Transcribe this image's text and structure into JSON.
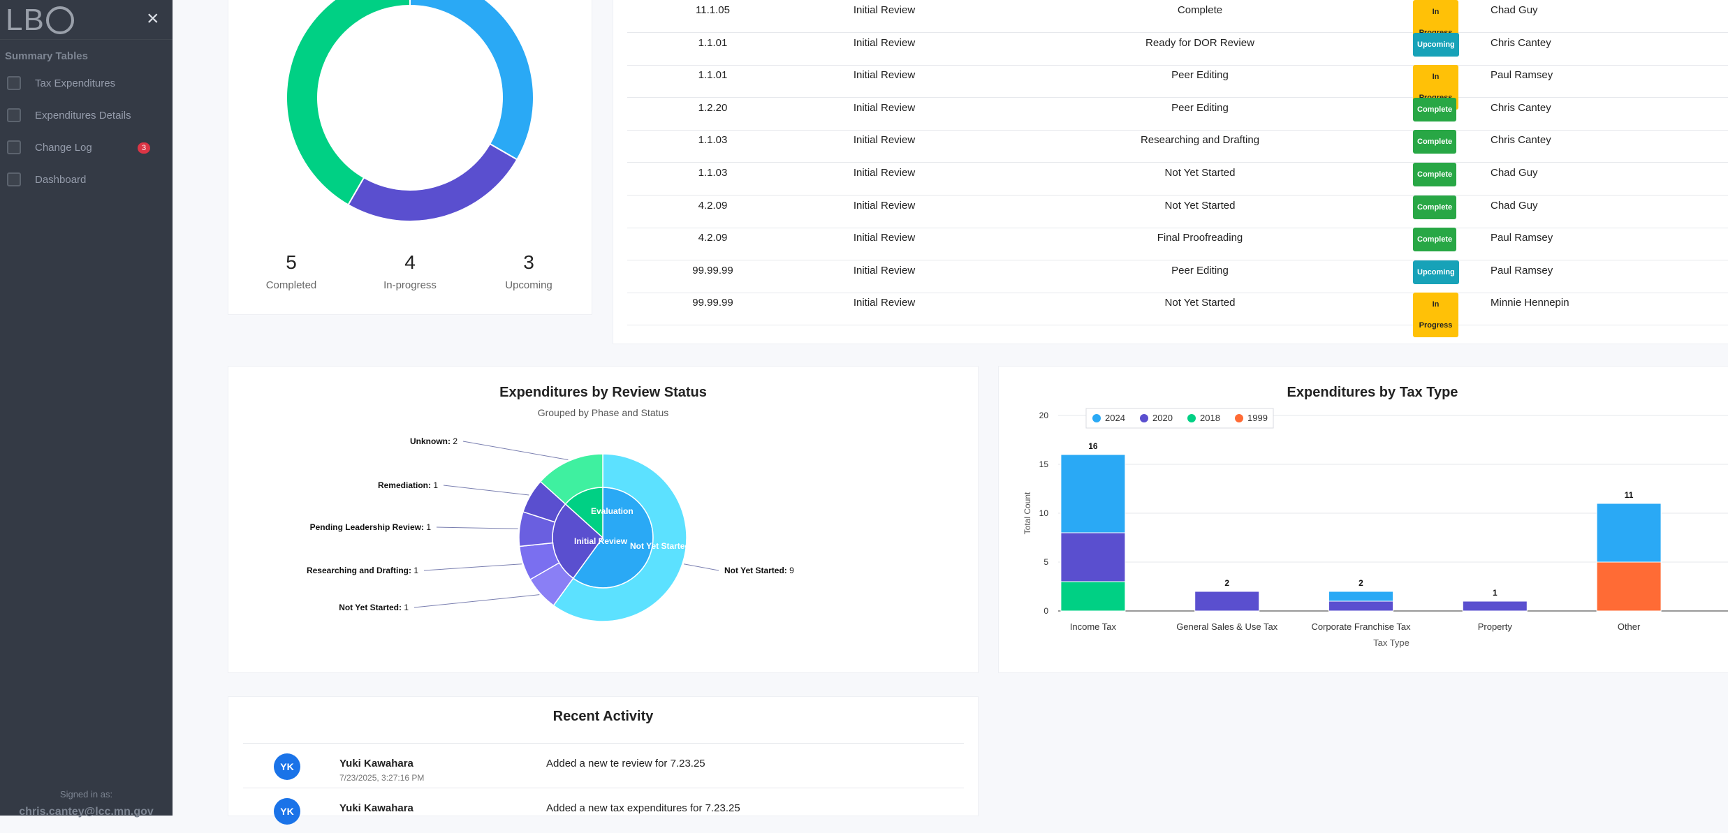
{
  "sidebar": {
    "logo": "LB",
    "close_label": "×",
    "section_title": "Summary Tables",
    "items": [
      {
        "label": "Tax Expenditures",
        "icon": "table-icon"
      },
      {
        "label": "Expenditures Details",
        "icon": "bar-chart-icon"
      },
      {
        "label": "Change Log",
        "icon": "log-icon",
        "badge": "3"
      },
      {
        "label": "Dashboard",
        "icon": "line-chart-icon"
      }
    ],
    "signed_in_label": "Signed in as:",
    "signed_in_email": "chris.cantey@lcc.mn.gov"
  },
  "summary": {
    "stats": [
      {
        "value": "5",
        "label": "Completed"
      },
      {
        "value": "4",
        "label": "In-progress"
      },
      {
        "value": "3",
        "label": "Upcoming"
      }
    ],
    "donut": [
      {
        "name": "Completed",
        "value": 5,
        "color": "#00d084"
      },
      {
        "name": "In-progress",
        "value": 4,
        "color": "#2aa9f5"
      },
      {
        "name": "Upcoming",
        "value": 3,
        "color": "#5a4fcf"
      }
    ]
  },
  "table": {
    "rows": [
      {
        "id": "11.1.05",
        "phase": "Initial Review",
        "step": "Complete",
        "status": "In Progress",
        "status_type": "prog",
        "assignee": "Chad Guy"
      },
      {
        "id": "1.1.01",
        "phase": "Initial Review",
        "step": "Ready for DOR Review",
        "status": "Upcoming",
        "status_type": "up",
        "assignee": "Chris Cantey"
      },
      {
        "id": "1.1.01",
        "phase": "Initial Review",
        "step": "Peer Editing",
        "status": "In Progress",
        "status_type": "prog",
        "assignee": "Paul Ramsey"
      },
      {
        "id": "1.2.20",
        "phase": "Initial Review",
        "step": "Peer Editing",
        "status": "Complete",
        "status_type": "comp",
        "assignee": "Chris Cantey"
      },
      {
        "id": "1.1.03",
        "phase": "Initial Review",
        "step": "Researching and Drafting",
        "status": "Complete",
        "status_type": "comp",
        "assignee": "Chris Cantey"
      },
      {
        "id": "1.1.03",
        "phase": "Initial Review",
        "step": "Not Yet Started",
        "status": "Complete",
        "status_type": "comp",
        "assignee": "Chad Guy"
      },
      {
        "id": "4.2.09",
        "phase": "Initial Review",
        "step": "Not Yet Started",
        "status": "Complete",
        "status_type": "comp",
        "assignee": "Chad Guy"
      },
      {
        "id": "4.2.09",
        "phase": "Initial Review",
        "step": "Final Proofreading",
        "status": "Complete",
        "status_type": "comp",
        "assignee": "Paul Ramsey"
      },
      {
        "id": "99.99.99",
        "phase": "Initial Review",
        "step": "Peer Editing",
        "status": "Upcoming",
        "status_type": "up",
        "assignee": "Paul Ramsey"
      },
      {
        "id": "99.99.99",
        "phase": "Initial Review",
        "step": "Not Yet Started",
        "status": "In Progress",
        "status_type": "prog",
        "assignee": "Minnie Hennepin"
      }
    ]
  },
  "chart_data": [
    {
      "type": "pie",
      "title": "Expenditures by Review Status",
      "subtitle": "Grouped by Phase and Status",
      "inner": [
        {
          "name": "Evaluation",
          "value": 2,
          "color": "#00d084"
        },
        {
          "name": "Initial Review",
          "value": 4,
          "color": "#5a4fcf"
        },
        {
          "name": "Not Yet Started",
          "value": 9,
          "color": "#2aa9f5"
        }
      ],
      "outer": [
        {
          "name": "Unknown",
          "value": 2,
          "color": "#3ff0a0"
        },
        {
          "name": "Remediation",
          "value": 1,
          "color": "#5a4fcf"
        },
        {
          "name": "Pending Leadership Review",
          "value": 1,
          "color": "#6a5fe0"
        },
        {
          "name": "Researching and Drafting",
          "value": 1,
          "color": "#7a6ff0"
        },
        {
          "name": "Not Yet Started",
          "value": 1,
          "color": "#8a7ff5"
        },
        {
          "name": "Not Yet Started",
          "value": 9,
          "color": "#5ce1ff"
        }
      ]
    },
    {
      "type": "bar",
      "stacked": true,
      "title": "Expenditures by Tax Type",
      "xlabel": "Tax Type",
      "ylabel": "Total Count",
      "ylim": [
        0,
        20
      ],
      "yticks": [
        0,
        5,
        10,
        15,
        20
      ],
      "categories": [
        "Income Tax",
        "General Sales & Use Tax",
        "Corporate Franchise Tax",
        "Property",
        "Other"
      ],
      "series": [
        {
          "name": "2018",
          "color": "#00d084",
          "values": [
            3,
            0,
            0,
            0,
            0
          ]
        },
        {
          "name": "2020",
          "color": "#5a4fcf",
          "values": [
            5,
            2,
            1,
            1,
            0
          ]
        },
        {
          "name": "2024",
          "color": "#2aa9f5",
          "values": [
            8,
            0,
            1,
            0,
            6
          ]
        },
        {
          "name": "1999",
          "color": "#ff6b35",
          "values": [
            0,
            0,
            0,
            0,
            5
          ]
        }
      ],
      "totals": [
        16,
        2,
        2,
        1,
        11
      ],
      "legend": [
        "2024",
        "2020",
        "2018",
        "1999"
      ]
    }
  ],
  "activity": {
    "title": "Recent Activity",
    "items": [
      {
        "initials": "YK",
        "name": "Yuki Kawahara",
        "time": "7/23/2025, 3:27:16 PM",
        "text": "Added a new te review for 7.23.25"
      },
      {
        "initials": "YK",
        "name": "Yuki Kawahara",
        "time": "",
        "text": "Added a new tax expenditures for 7.23.25"
      }
    ]
  }
}
